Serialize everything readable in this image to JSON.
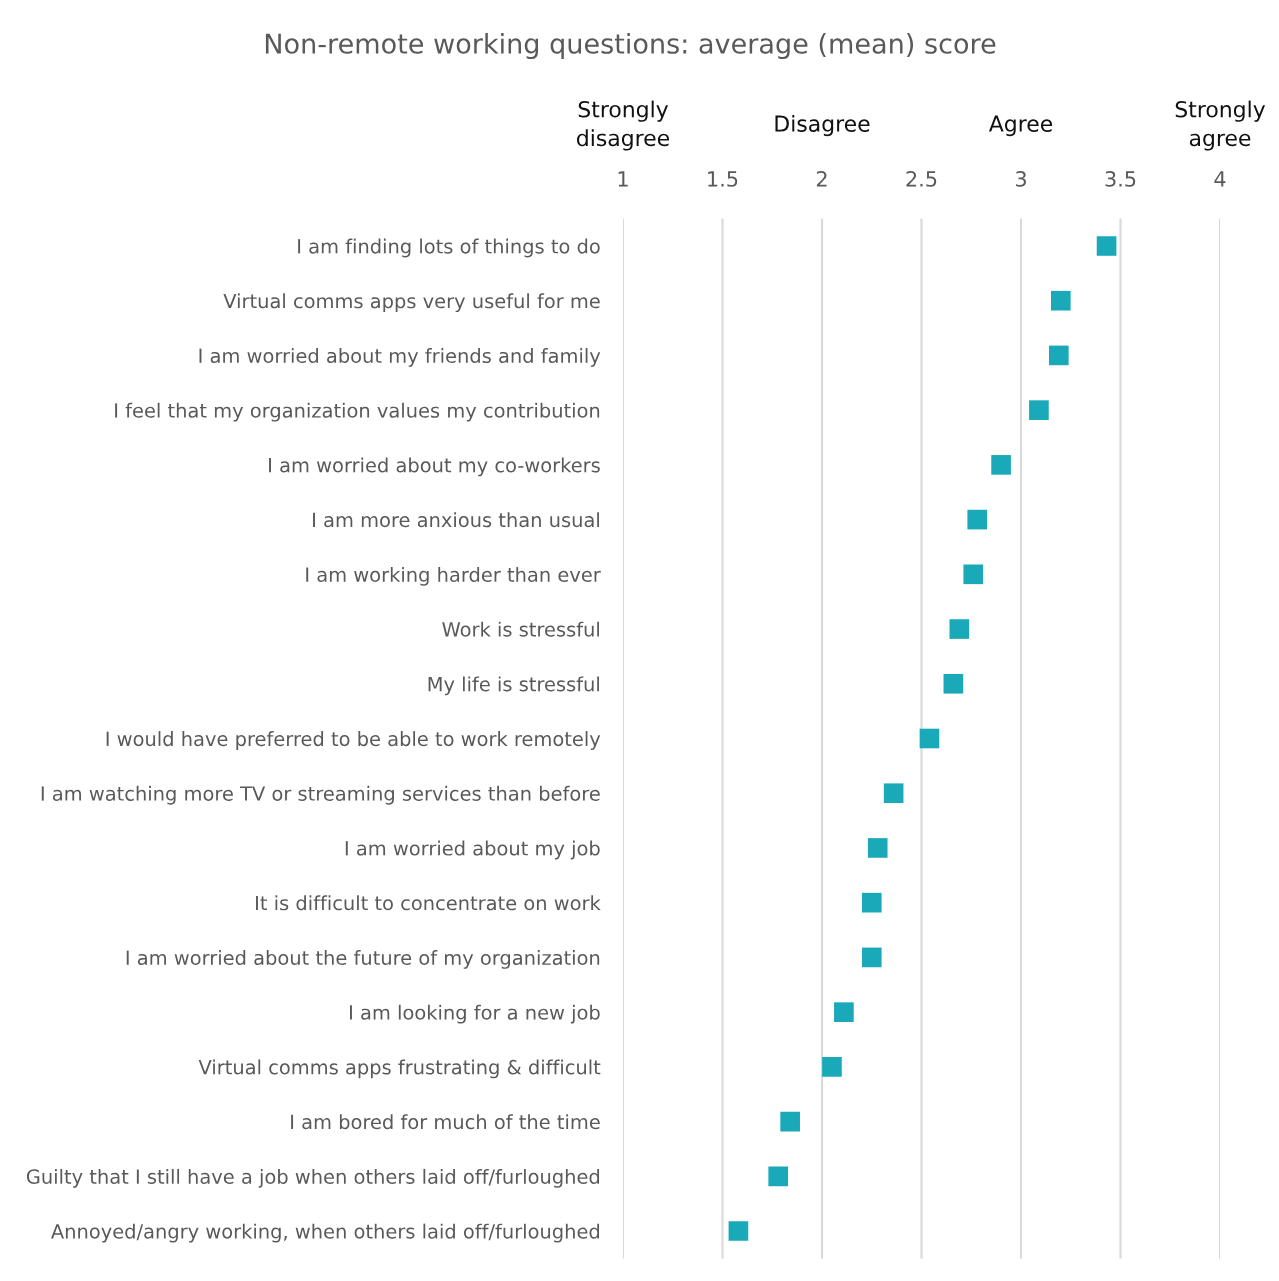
{
  "chart_data": {
    "type": "scatter",
    "title": "Non-remote working questions: average (mean) score",
    "orientation": "horizontal",
    "marker": "square",
    "color": "#19a9b8",
    "categories": [
      "I am finding lots of things to do",
      "Virtual comms apps very useful for me",
      "I am worried about my friends and family",
      "I feel that my organization values my contribution",
      "I am worried about my co-workers",
      "I am more anxious than usual",
      "I am working harder than ever",
      "Work is stressful",
      "My life is stressful",
      "I would have preferred to be able to work remotely",
      "I am watching more TV or streaming services than before",
      "I am worried about my job",
      "It is difficult to concentrate on work",
      "I am worried about the future of my organization",
      "I am looking for a new job",
      "Virtual comms apps frustrating & difficult",
      "I am bored for much of the time",
      "Guilty that I still have a job when others laid off/furloughed",
      "Annoyed/angry working, when others laid off/furloughed"
    ],
    "values": [
      3.43,
      3.2,
      3.19,
      3.09,
      2.9,
      2.78,
      2.76,
      2.69,
      2.66,
      2.54,
      2.36,
      2.28,
      2.25,
      2.25,
      2.11,
      2.05,
      1.84,
      1.78,
      1.58
    ],
    "xlim": [
      1,
      4
    ],
    "xticks": [
      1,
      1.5,
      2,
      2.5,
      3,
      3.5,
      4
    ],
    "annotations": [
      "Strongly\ndisagree",
      "Disagree",
      "Agree",
      "Strongly\nagree"
    ],
    "grid": "x"
  }
}
